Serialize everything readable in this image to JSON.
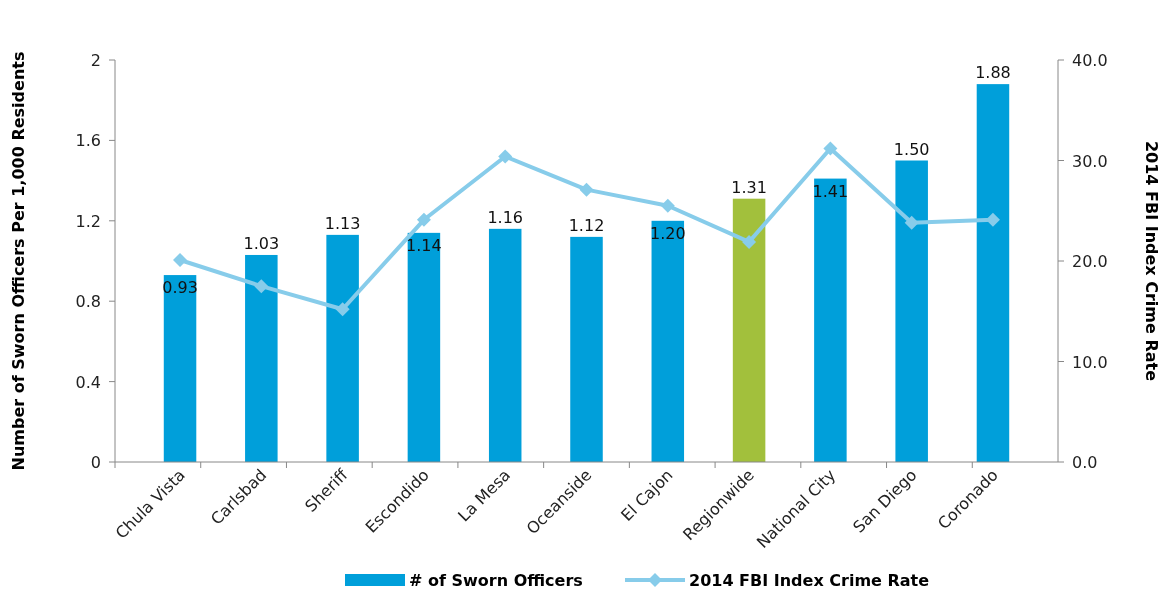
{
  "chart_data": {
    "type": "bar",
    "xlabel": null,
    "ylabel": "Number of Sworn Officers Per 1,000 Residents",
    "y2label": "2014 FBI Index Crime Rate",
    "categories": [
      "Chula Vista",
      "Carlsbad",
      "Sheriff",
      "Escondido",
      "La Mesa",
      "Oceanside",
      "El Cajon",
      "Regionwide",
      "National City",
      "San Diego",
      "Coronado"
    ],
    "series": [
      {
        "name": "# of Sworn Officers",
        "color": "#009fda",
        "colors": [
          "#009fda",
          "#009fda",
          "#009fda",
          "#009fda",
          "#009fda",
          "#009fda",
          "#009fda",
          "#a2c03c",
          "#009fda",
          "#009fda",
          "#009fda"
        ],
        "values": [
          0.93,
          1.03,
          1.13,
          1.14,
          1.16,
          1.12,
          1.2,
          1.31,
          1.41,
          1.5,
          1.88
        ],
        "value_labels": [
          "0.93",
          "1.03",
          "1.13",
          "1.14",
          "1.16",
          "1.12",
          "1.20",
          "1.31",
          "1.41",
          "1.50",
          "1.88"
        ]
      },
      {
        "name": "2014 FBI Index Crime Rate",
        "type": "line",
        "axis": "y2",
        "color": "#87ccea",
        "marker": "diamond",
        "values": [
          20.1,
          17.5,
          15.2,
          24.1,
          30.4,
          27.1,
          25.5,
          21.9,
          31.2,
          23.8,
          24.1
        ]
      }
    ],
    "ylim": [
      0,
      2
    ],
    "yticks": [
      0,
      0.4,
      0.8,
      1.2,
      1.6,
      2
    ],
    "y2lim": [
      0,
      40
    ],
    "y2ticks": [
      {
        "value": 0,
        "label": "0.0"
      },
      {
        "value": 10,
        "label": "10.0"
      },
      {
        "value": 20,
        "label": "20.0"
      },
      {
        "value": 30,
        "label": "30.0"
      },
      {
        "value": 40,
        "label": "40.0"
      }
    ],
    "grid": false,
    "legend": "bottom"
  }
}
